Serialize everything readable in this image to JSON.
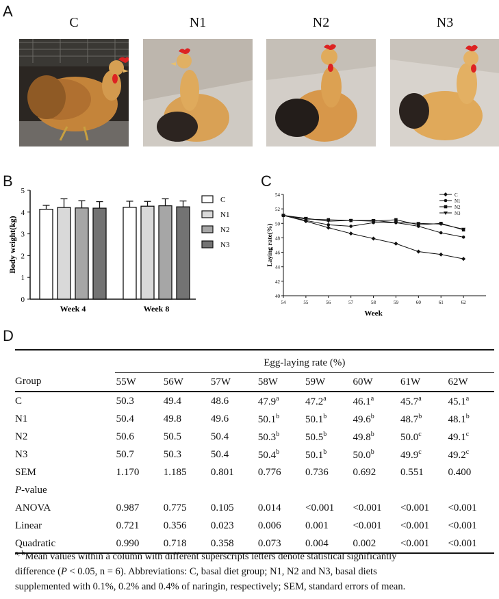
{
  "panels": {
    "a": "A",
    "b": "B",
    "c": "C",
    "d": "D"
  },
  "photos": [
    {
      "label": "C"
    },
    {
      "label": "N1"
    },
    {
      "label": "N2"
    },
    {
      "label": "N3"
    }
  ],
  "chart_data": [
    {
      "type": "bar",
      "categories": [
        "Week 4",
        "Week 8"
      ],
      "ylabel": "Body weight(kg)",
      "xlabel": "",
      "ylim": [
        0,
        5
      ],
      "yticks": [
        "0",
        "1",
        "2",
        "3",
        "4",
        "5"
      ],
      "series": [
        {
          "name": "C",
          "values": [
            4.13,
            4.22
          ],
          "errors": [
            0.18,
            0.28
          ],
          "color": "#ffffff"
        },
        {
          "name": "N1",
          "values": [
            4.21,
            4.27
          ],
          "errors": [
            0.4,
            0.22
          ],
          "color": "#d9d9d9"
        },
        {
          "name": "N2",
          "values": [
            4.19,
            4.29
          ],
          "errors": [
            0.33,
            0.32
          ],
          "color": "#a6a6a6"
        },
        {
          "name": "N3",
          "values": [
            4.18,
            4.24
          ],
          "errors": [
            0.3,
            0.27
          ],
          "color": "#737373"
        }
      ],
      "legend_position": "right"
    },
    {
      "type": "line",
      "x": [
        54,
        55,
        56,
        57,
        58,
        59,
        60,
        61,
        62
      ],
      "xlabel": "Week",
      "ylabel": "Laying rate(%)",
      "xticks": [
        "54",
        "55",
        "56",
        "57",
        "58",
        "59",
        "60",
        "61",
        "62"
      ],
      "yticks": [
        "40",
        "42",
        "44",
        "46",
        "48",
        "50",
        "52",
        "54"
      ],
      "ylim": [
        40,
        54
      ],
      "series": [
        {
          "name": "C",
          "marker": "diamond",
          "values": [
            51.1,
            50.3,
            49.4,
            48.6,
            47.9,
            47.2,
            46.1,
            45.7,
            45.1
          ]
        },
        {
          "name": "N1",
          "marker": "circle",
          "values": [
            51.1,
            50.4,
            49.8,
            49.6,
            50.1,
            50.1,
            49.6,
            48.7,
            48.1
          ]
        },
        {
          "name": "N2",
          "marker": "square",
          "values": [
            51.1,
            50.6,
            50.5,
            50.4,
            50.3,
            50.5,
            49.8,
            50.0,
            49.1
          ]
        },
        {
          "name": "N3",
          "marker": "triangle-down",
          "values": [
            51.1,
            50.7,
            50.3,
            50.4,
            50.4,
            50.1,
            50.0,
            49.9,
            49.2
          ]
        }
      ],
      "legend_position": "top-right"
    }
  ],
  "table": {
    "group_header": "Group",
    "span_header": "Egg-laying rate (%)",
    "columns": [
      "55W",
      "56W",
      "57W",
      "58W",
      "59W",
      "60W",
      "61W",
      "62W"
    ],
    "rows": [
      {
        "label": "C",
        "cells": [
          [
            "50.3",
            ""
          ],
          [
            "49.4",
            ""
          ],
          [
            "48.6",
            ""
          ],
          [
            "47.9",
            "a"
          ],
          [
            "47.2",
            "a"
          ],
          [
            "46.1",
            "a"
          ],
          [
            "45.7",
            "a"
          ],
          [
            "45.1",
            "a"
          ]
        ]
      },
      {
        "label": "N1",
        "cells": [
          [
            "50.4",
            ""
          ],
          [
            "49.8",
            ""
          ],
          [
            "49.6",
            ""
          ],
          [
            "50.1",
            "b"
          ],
          [
            "50.1",
            "b"
          ],
          [
            "49.6",
            "b"
          ],
          [
            "48.7",
            "b"
          ],
          [
            "48.1",
            "b"
          ]
        ]
      },
      {
        "label": "N2",
        "cells": [
          [
            "50.6",
            ""
          ],
          [
            "50.5",
            ""
          ],
          [
            "50.4",
            ""
          ],
          [
            "50.3",
            "b"
          ],
          [
            "50.5",
            "b"
          ],
          [
            "49.8",
            "b"
          ],
          [
            "50.0",
            "c"
          ],
          [
            "49.1",
            "c"
          ]
        ]
      },
      {
        "label": "N3",
        "cells": [
          [
            "50.7",
            ""
          ],
          [
            "50.3",
            ""
          ],
          [
            "50.4",
            ""
          ],
          [
            "50.4",
            "b"
          ],
          [
            "50.1",
            "b"
          ],
          [
            "50.0",
            "b"
          ],
          [
            "49.9",
            "c"
          ],
          [
            "49.2",
            "c"
          ]
        ]
      },
      {
        "label": "SEM",
        "cells": [
          [
            "1.170",
            ""
          ],
          [
            "1.185",
            ""
          ],
          [
            "0.801",
            ""
          ],
          [
            "0.776",
            ""
          ],
          [
            "0.736",
            ""
          ],
          [
            "0.692",
            ""
          ],
          [
            "0.551",
            ""
          ],
          [
            "0.400",
            ""
          ]
        ]
      },
      {
        "label": "P-value",
        "italic_prefix": "P",
        "rest": "-value",
        "cells": []
      },
      {
        "label": "ANOVA",
        "cells": [
          [
            "0.987",
            ""
          ],
          [
            "0.775",
            ""
          ],
          [
            "0.105",
            ""
          ],
          [
            "0.014",
            ""
          ],
          [
            "<0.001",
            ""
          ],
          [
            "<0.001",
            ""
          ],
          [
            "<0.001",
            ""
          ],
          [
            "<0.001",
            ""
          ]
        ]
      },
      {
        "label": "Linear",
        "cells": [
          [
            "0.721",
            ""
          ],
          [
            "0.356",
            ""
          ],
          [
            "0.023",
            ""
          ],
          [
            "0.006",
            ""
          ],
          [
            "0.001",
            ""
          ],
          [
            "<0.001",
            ""
          ],
          [
            "<0.001",
            ""
          ],
          [
            "<0.001",
            ""
          ]
        ]
      },
      {
        "label": "Quadratic",
        "cells": [
          [
            "0.990",
            ""
          ],
          [
            "0.718",
            ""
          ],
          [
            "0.358",
            ""
          ],
          [
            "0.073",
            ""
          ],
          [
            "0.004",
            ""
          ],
          [
            "0.002",
            ""
          ],
          [
            "<0.001",
            ""
          ],
          [
            "<0.001",
            ""
          ]
        ]
      }
    ],
    "footnote": {
      "sup": "a, b",
      "line1": "Mean values within a column with different superscripts letters denote statistical significantly",
      "line2a": "difference (",
      "line2p": "P",
      "line2b": " < 0.05, n = 6). Abbreviations: C, basal diet group; N1, N2 and N3, basal diets",
      "line3": "supplemented with 0.1%, 0.2% and 0.4% of naringin, respectively; SEM, standard errors of mean."
    }
  }
}
